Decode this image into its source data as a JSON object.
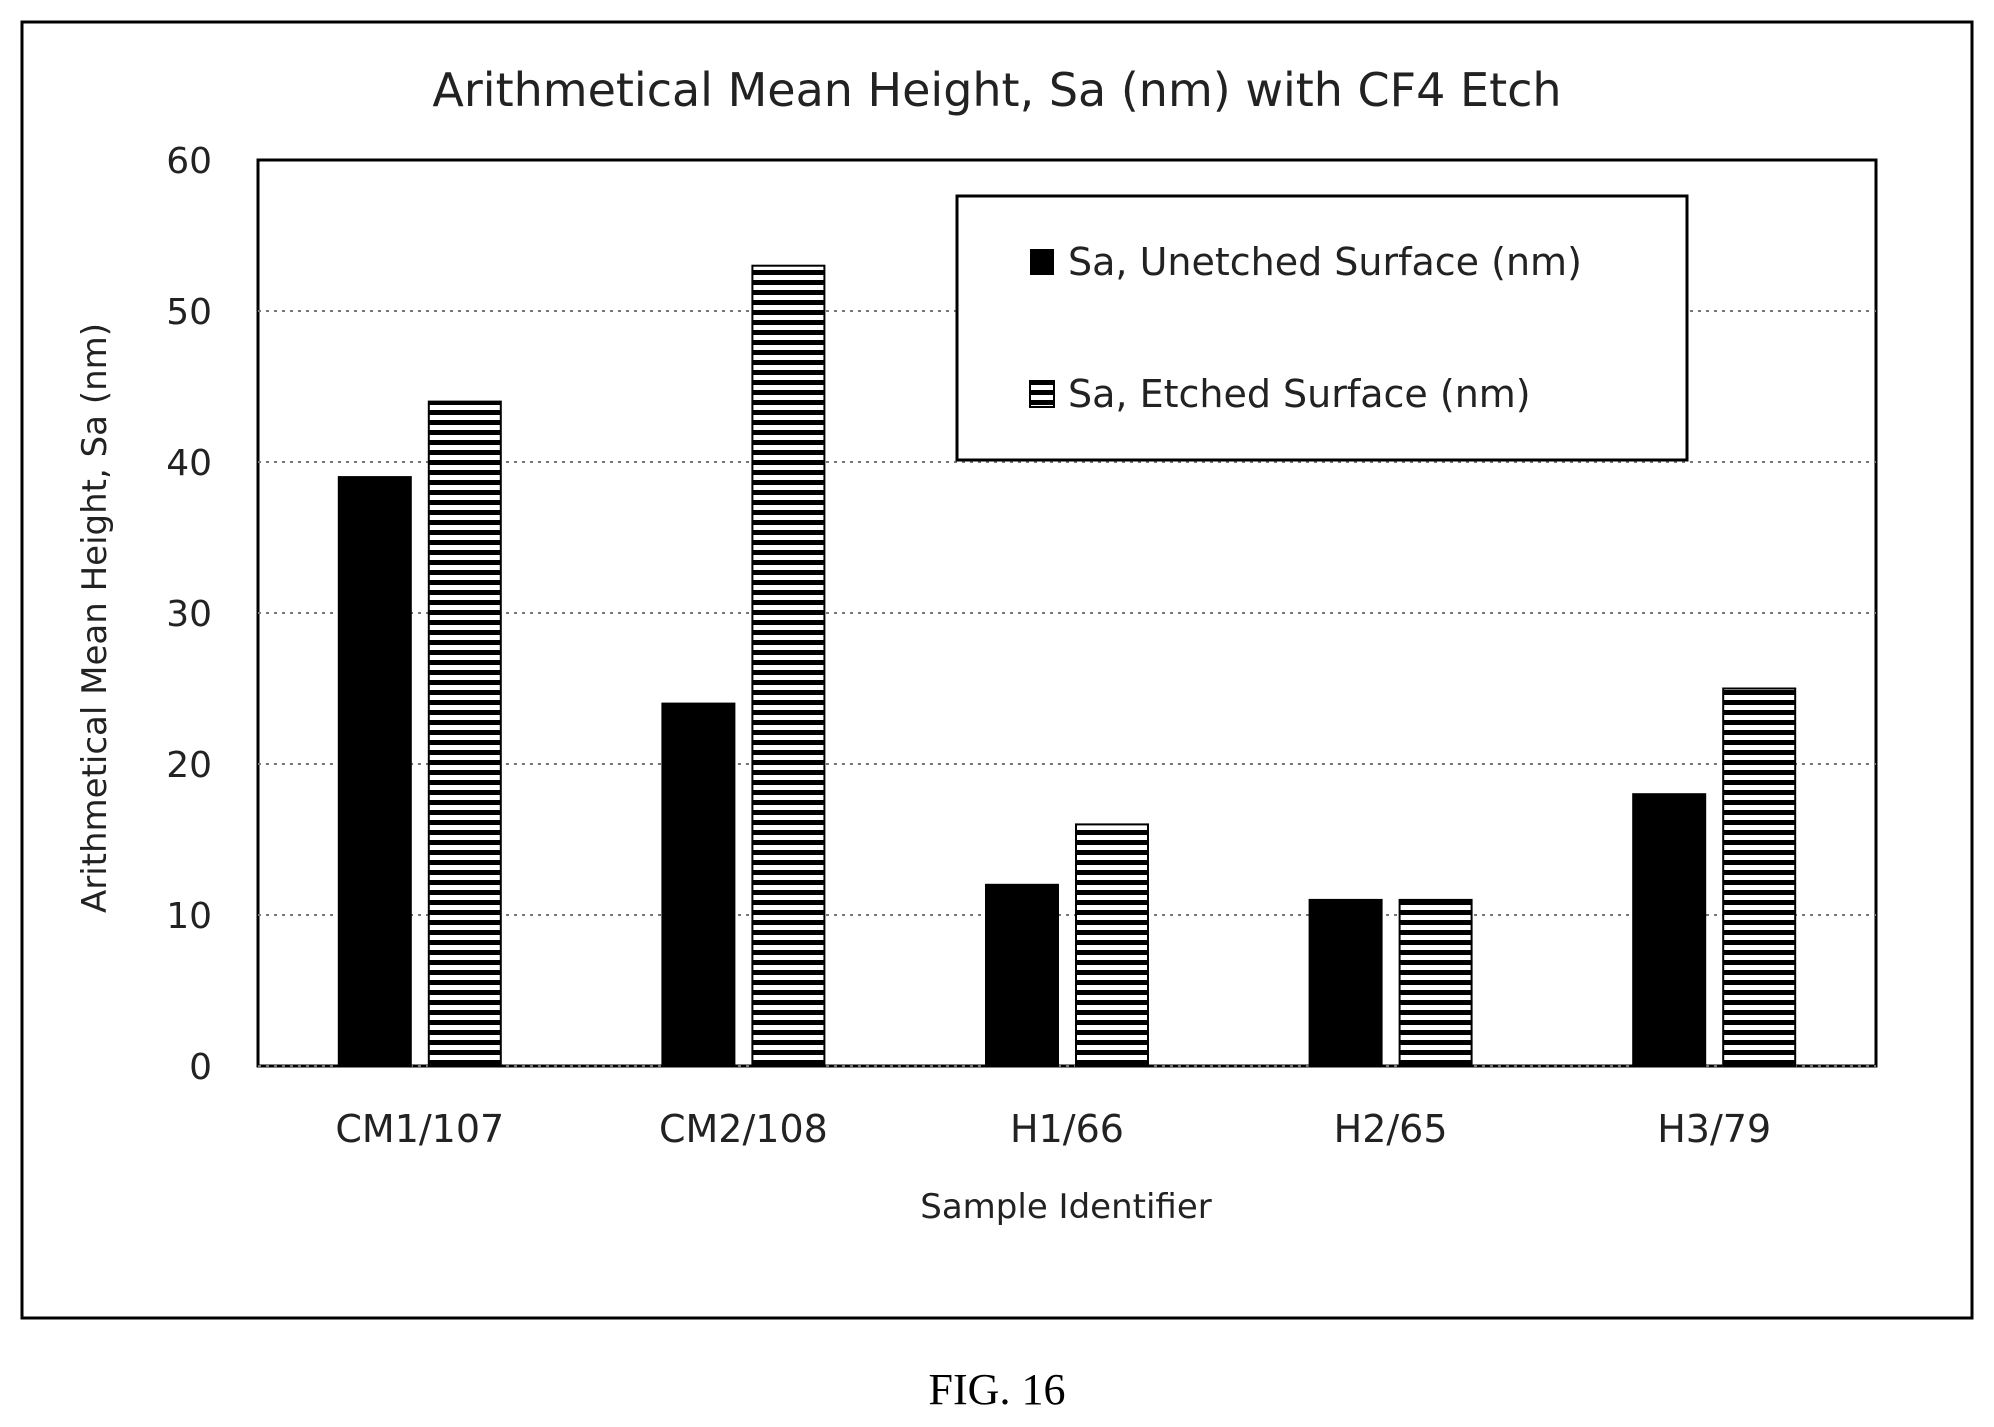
{
  "chart_data": {
    "type": "bar",
    "title": "Arithmetical Mean Height, Sa (nm) with CF4 Etch",
    "xlabel": "Sample Identifier",
    "ylabel": "Arithmetical Mean Height, Sa (nm)",
    "categories": [
      "CM1/107",
      "CM2/108",
      "H1/66",
      "H2/65",
      "H3/79"
    ],
    "series": [
      {
        "name": "Sa, Unetched Surface  (nm)",
        "values": [
          39,
          24,
          12,
          11,
          18
        ],
        "color": "#000000",
        "fill": "solid"
      },
      {
        "name": "Sa, Etched Surface  (nm)",
        "values": [
          44,
          53,
          16,
          11,
          25
        ],
        "color": "#000000",
        "fill": "horizontal-stripes"
      }
    ],
    "ylim": [
      0,
      60
    ],
    "yticks": [
      "0",
      "10",
      "20",
      "30",
      "40",
      "50",
      "60"
    ],
    "grid": true,
    "legend": "top-right"
  },
  "caption": "FIG. 16"
}
